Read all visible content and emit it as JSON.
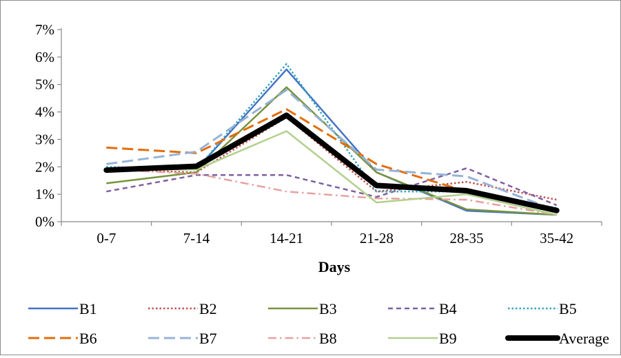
{
  "chart_data": {
    "type": "line",
    "xlabel": "Days",
    "ylabel": "",
    "categories": [
      "0-7",
      "7-14",
      "14-21",
      "21-28",
      "28-35",
      "35-42"
    ],
    "ylim": [
      0,
      0.07
    ],
    "y_ticks": [
      0,
      0.01,
      0.02,
      0.03,
      0.04,
      0.05,
      0.06,
      0.07
    ],
    "y_tick_labels": [
      "0%",
      "1%",
      "2%",
      "3%",
      "4%",
      "5%",
      "6%",
      "7%"
    ],
    "y_format": "percent",
    "grid": false,
    "legend_position": "bottom",
    "series": [
      {
        "name": "B1",
        "color": "#4472c4",
        "dash": "solid",
        "values": [
          0.019,
          0.019,
          0.0555,
          0.018,
          0.004,
          0.0025
        ]
      },
      {
        "name": "B2",
        "color": "#c0504d",
        "dash": "dotted",
        "values": [
          0.019,
          0.018,
          0.038,
          0.011,
          0.0145,
          0.008
        ]
      },
      {
        "name": "B3",
        "color": "#77933c",
        "dash": "solid",
        "values": [
          0.014,
          0.018,
          0.049,
          0.018,
          0.0045,
          0.0025
        ]
      },
      {
        "name": "B4",
        "color": "#7f5fa0",
        "dash": "dashed",
        "values": [
          0.011,
          0.017,
          0.017,
          0.009,
          0.0195,
          0.006
        ]
      },
      {
        "name": "B5",
        "color": "#31a3b9",
        "dash": "dotted",
        "values": [
          0.02,
          0.019,
          0.0575,
          0.011,
          0.011,
          0.005
        ]
      },
      {
        "name": "B6",
        "color": "#e46c0a",
        "dash": "longdash",
        "values": [
          0.027,
          0.025,
          0.041,
          0.021,
          0.011,
          0.004
        ]
      },
      {
        "name": "B7",
        "color": "#95b3d7",
        "dash": "longdash",
        "values": [
          0.021,
          0.0255,
          0.048,
          0.019,
          0.0165,
          0.004
        ]
      },
      {
        "name": "B8",
        "color": "#e6a0a0",
        "dash": "dashdot",
        "values": [
          0.019,
          0.0175,
          0.011,
          0.0085,
          0.008,
          0.0025
        ]
      },
      {
        "name": "B9",
        "color": "#b3cf8c",
        "dash": "solid",
        "values": [
          0.019,
          0.019,
          0.033,
          0.007,
          0.01,
          0.0025
        ]
      },
      {
        "name": "Average",
        "color": "#000000",
        "dash": "thick",
        "values": [
          0.0188,
          0.0202,
          0.0388,
          0.0132,
          0.0113,
          0.0041
        ]
      }
    ]
  }
}
